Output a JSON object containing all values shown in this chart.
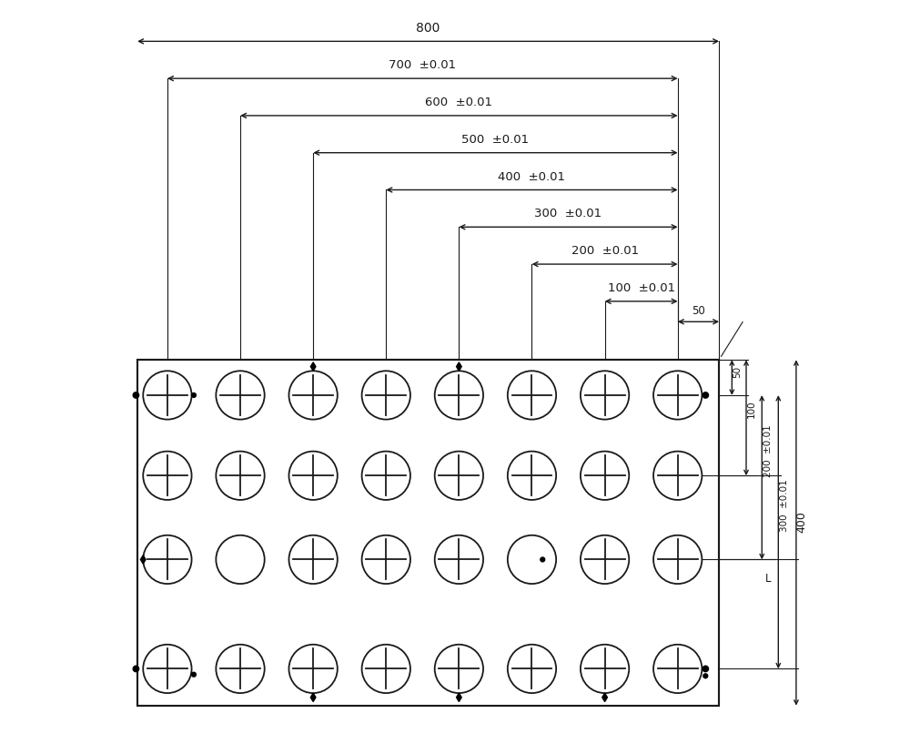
{
  "fig_width": 10.0,
  "fig_height": 8.17,
  "dpi": 100,
  "bg_color": "#ffffff",
  "line_color": "#1a1a1a",
  "dim_800_label": "800",
  "dim_700_label": "700  ±0.01",
  "dim_600_label": "600  ±0.01",
  "dim_500_label": "500  ±0.01",
  "dim_400_label": "400  ±0.01",
  "dim_300_label": "300  ±0.01",
  "dim_200_label": "200  ±0.01",
  "dim_100_label": "100  ±0.01",
  "dim_50h_label": "50",
  "dim_v50_label": "50",
  "dim_v100_label": "100",
  "dim_v200_label": "200  ±0.01",
  "dim_v300_label": "300  ±0.01",
  "dim_v400_label": "400",
  "cross_pattern": [
    [
      true,
      true,
      true,
      true,
      true,
      true,
      true,
      true
    ],
    [
      true,
      true,
      true,
      true,
      true,
      true,
      true,
      true
    ],
    [
      true,
      false,
      true,
      true,
      true,
      false,
      true,
      true
    ],
    [
      true,
      true,
      true,
      true,
      true,
      true,
      true,
      true
    ]
  ]
}
